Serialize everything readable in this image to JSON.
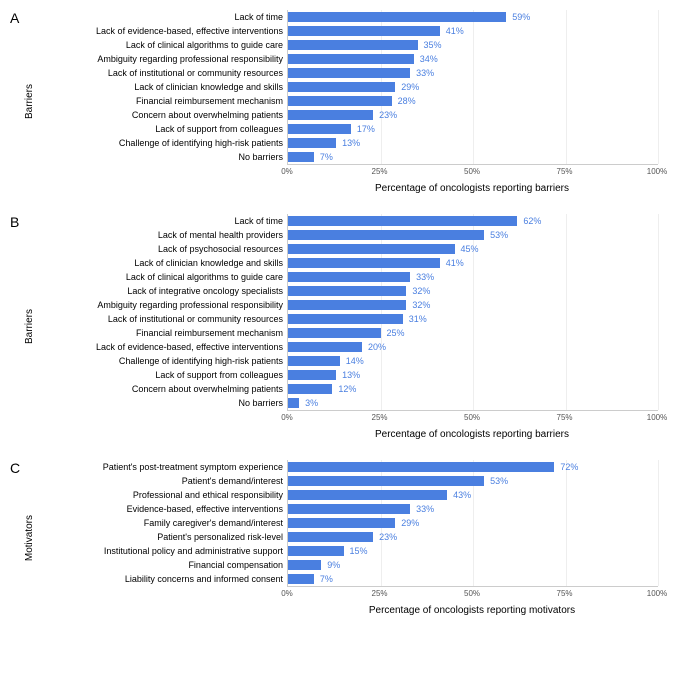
{
  "bar_color": "#4a7fe0",
  "value_color": "#4a7fe0",
  "xlim": 100,
  "xticks": [
    0,
    25,
    50,
    75,
    100
  ],
  "panels": [
    {
      "letter": "A",
      "y_title": "Barriers",
      "x_title": "Percentage of oncologists reporting barriers",
      "rows": [
        {
          "label": "Lack of time",
          "value": 59
        },
        {
          "label": "Lack of evidence-based, effective interventions",
          "value": 41
        },
        {
          "label": "Lack of clinical algorithms to guide care",
          "value": 35
        },
        {
          "label": "Ambiguity regarding professional responsibility",
          "value": 34
        },
        {
          "label": "Lack of institutional or community resources",
          "value": 33
        },
        {
          "label": "Lack of clinician knowledge and skills",
          "value": 29
        },
        {
          "label": "Financial reimbursement mechanism",
          "value": 28
        },
        {
          "label": "Concern about overwhelming patients",
          "value": 23
        },
        {
          "label": "Lack of support from colleagues",
          "value": 17
        },
        {
          "label": "Challenge of identifying high-risk patients",
          "value": 13
        },
        {
          "label": "No barriers",
          "value": 7
        }
      ]
    },
    {
      "letter": "B",
      "y_title": "Barriers",
      "x_title": "Percentage of oncologists reporting barriers",
      "rows": [
        {
          "label": "Lack of time",
          "value": 62
        },
        {
          "label": "Lack of mental health providers",
          "value": 53
        },
        {
          "label": "Lack of psychosocial resources",
          "value": 45
        },
        {
          "label": "Lack of clinician knowledge and skills",
          "value": 41
        },
        {
          "label": "Lack of clinical algorithms to guide care",
          "value": 33
        },
        {
          "label": "Lack of integrative oncology specialists",
          "value": 32
        },
        {
          "label": "Ambiguity regarding professional responsibility",
          "value": 32
        },
        {
          "label": "Lack of institutional or community resources",
          "value": 31
        },
        {
          "label": "Financial reimbursement mechanism",
          "value": 25
        },
        {
          "label": "Lack of evidence-based, effective interventions",
          "value": 20
        },
        {
          "label": "Challenge of identifying high-risk patients",
          "value": 14
        },
        {
          "label": "Lack of support from colleagues",
          "value": 13
        },
        {
          "label": "Concern about overwhelming patients",
          "value": 12
        },
        {
          "label": "No barriers",
          "value": 3
        }
      ]
    },
    {
      "letter": "C",
      "y_title": "Motivators",
      "x_title": "Percentage of oncologists reporting motivators",
      "rows": [
        {
          "label": "Patient's post-treatment symptom experience",
          "value": 72
        },
        {
          "label": "Patient's demand/interest",
          "value": 53
        },
        {
          "label": "Professional and ethical responsibility",
          "value": 43
        },
        {
          "label": "Evidence-based, effective interventions",
          "value": 33
        },
        {
          "label": "Family caregiver's demand/interest",
          "value": 29
        },
        {
          "label": "Patient's personalized risk-level",
          "value": 23
        },
        {
          "label": "Institutional policy and administrative support",
          "value": 15
        },
        {
          "label": "Financial compensation",
          "value": 9
        },
        {
          "label": "Liability concerns and informed consent",
          "value": 7
        }
      ]
    }
  ]
}
